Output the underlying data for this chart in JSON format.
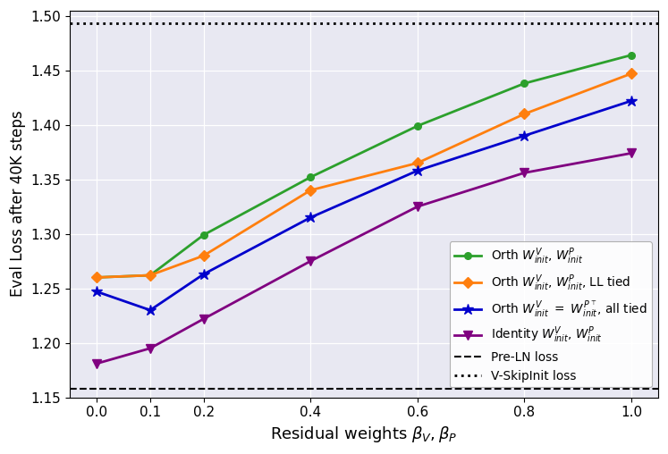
{
  "x": [
    0.0,
    0.1,
    0.2,
    0.4,
    0.6,
    0.8,
    1.0
  ],
  "orth_vp": [
    1.26,
    1.262,
    1.299,
    1.352,
    1.399,
    1.438,
    1.464
  ],
  "orth_vp_ll": [
    1.26,
    1.262,
    1.28,
    1.34,
    1.365,
    1.41,
    1.447
  ],
  "orth_tied": [
    1.247,
    1.23,
    1.263,
    1.315,
    1.358,
    1.39,
    1.422
  ],
  "identity_vp": [
    1.181,
    1.195,
    1.222,
    1.275,
    1.325,
    1.356,
    1.374
  ],
  "pre_ln_loss": 1.158,
  "vskipinit_loss": 1.493,
  "color_orth_vp": "#2ca02c",
  "color_orth_vp_ll": "#ff7f0e",
  "color_orth_tied": "#0000cc",
  "color_identity": "#800080",
  "ylabel": "Eval Loss after 40K steps",
  "xlabel": "Residual weights $\\beta_V, \\beta_P$",
  "ylim": [
    1.15,
    1.505
  ],
  "yticks": [
    1.15,
    1.2,
    1.25,
    1.3,
    1.35,
    1.4,
    1.45,
    1.5
  ],
  "bg_color": "#e8e8f2",
  "label_orth_vp": "Orth $W^V_{init}$, $W^P_{init}$",
  "label_orth_vp_ll": "Orth $W^V_{init}$, $W^P_{init}$, LL tied",
  "label_orth_tied": "Orth $W^V_{init}$ $=$ $W^{P^\\top}_{init}$, all tied",
  "label_identity": "Identity $W^V_{init}$, $W^P_{init}$",
  "label_preln": "Pre-LN loss",
  "label_vskip": "V-SkipInit loss"
}
